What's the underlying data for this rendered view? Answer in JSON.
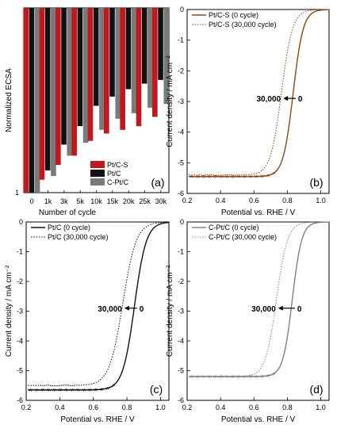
{
  "chart_data": [
    {
      "panel": "(a)",
      "type": "bar",
      "ylabel": "Normalized ECSA",
      "xlabel": "Number of cycle",
      "y_tick_labels": [
        "1"
      ],
      "categories": [
        "0",
        "1k",
        "3k",
        "5k",
        "10k",
        "15k",
        "20k",
        "25k",
        "30k"
      ],
      "ylim": [
        0,
        1
      ],
      "y_inverted": true,
      "series": [
        {
          "name": "Pt/C-S",
          "color": "#c0181d",
          "values": [
            1.0,
            0.93,
            0.85,
            0.8,
            0.72,
            0.68,
            0.66,
            0.64,
            0.59
          ]
        },
        {
          "name": "Pt/C",
          "color": "#111111",
          "values": [
            1.0,
            0.88,
            0.74,
            0.64,
            0.53,
            0.48,
            0.44,
            0.41,
            0.39
          ]
        },
        {
          "name": "C-Pt/C",
          "color": "#7a7a7a",
          "values": [
            1.0,
            0.91,
            0.8,
            0.73,
            0.66,
            0.6,
            0.57,
            0.54,
            0.52
          ]
        }
      ],
      "legend": "bottom-right",
      "grid": false
    },
    {
      "panel": "(b)",
      "type": "line",
      "xlabel": "Potential vs. RHE / V",
      "ylabel": "Current density / mA cm⁻²",
      "xlim": [
        0.2,
        1.05
      ],
      "ylim": [
        -6,
        0
      ],
      "x_ticks": [
        "0.2",
        "0.4",
        "0.6",
        "0.8",
        "1.0"
      ],
      "y_ticks": [
        "-6",
        "-5",
        "-4",
        "-3",
        "-2",
        "-1",
        "0"
      ],
      "series": [
        {
          "name": "Pt/C-S (0 cycle)",
          "color": "#8b4513",
          "style": "solid",
          "jlim": -5.45,
          "e_half": 0.835,
          "slope": 0.03
        },
        {
          "name": "Pt/C-S (30,000 cycle)",
          "color": "#8b4513",
          "style": "dotted",
          "jlim": -5.4,
          "e_half": 0.765,
          "slope": 0.033
        }
      ],
      "annotation": {
        "from": "0",
        "to": "30,000"
      },
      "legend": "top-left",
      "grid": false
    },
    {
      "panel": "(c)",
      "type": "line",
      "xlabel": "Potential vs. RHE / V",
      "ylabel": "Current density / mA cm⁻²",
      "xlim": [
        0.2,
        1.05
      ],
      "ylim": [
        -6,
        0
      ],
      "x_ticks": [
        "0.2",
        "0.4",
        "0.6",
        "0.8",
        "1.0"
      ],
      "y_ticks": [
        "-6",
        "-5",
        "-4",
        "-3",
        "-2",
        "-1",
        "0"
      ],
      "series": [
        {
          "name": "Pt/C (0 cycle)",
          "color": "#111111",
          "style": "solid",
          "jlim": -5.65,
          "e_half": 0.845,
          "slope": 0.035
        },
        {
          "name": "Pt/C (30,000 cycle)",
          "color": "#111111",
          "style": "dotted",
          "jlim": -5.5,
          "e_half": 0.775,
          "slope": 0.04
        }
      ],
      "annotation": {
        "from": "0",
        "to": "30,000"
      },
      "legend": "top-left",
      "grid": false
    },
    {
      "panel": "(d)",
      "type": "line",
      "xlabel": "Potential vs. RHE / V",
      "ylabel": "Current density / mA cm⁻²",
      "xlim": [
        0.2,
        1.05
      ],
      "ylim": [
        -6,
        0
      ],
      "x_ticks": [
        "0.2",
        "0.4",
        "0.6",
        "0.8",
        "1.0"
      ],
      "y_ticks": [
        "-6",
        "-5",
        "-4",
        "-3",
        "-2",
        "-1",
        "0"
      ],
      "series": [
        {
          "name": "C-Pt/C (0 cycle)",
          "color": "#808080",
          "style": "solid",
          "jlim": -5.2,
          "e_half": 0.83,
          "slope": 0.028
        },
        {
          "name": "C-Pt/C (30,000 cycle)",
          "color": "#808080",
          "style": "dotted",
          "jlim": -5.2,
          "e_half": 0.735,
          "slope": 0.033
        }
      ],
      "annotation": {
        "from": "0",
        "to": "30,000"
      },
      "legend": "top-left",
      "grid": false
    }
  ]
}
